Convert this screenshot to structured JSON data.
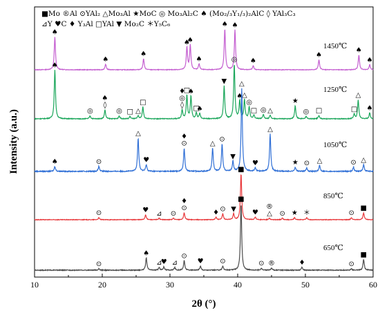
{
  "chart_data": {
    "type": "line",
    "xlabel": "2θ (°)",
    "ylabel": "Intensity (a.u.)",
    "xlim": [
      10,
      60
    ],
    "xticks": [
      10,
      20,
      30,
      40,
      50,
      60
    ],
    "legend_lines": [
      "■Mo ®Al ⊙YAl₂ △Mo₃Al ★MoC ◎ Mo₃Al₂C ♠ (Mo₂/₃Y₁/₃)₂AlC ◊ YAl₃C₃",
      "⊿Y ♥C ♦ Y₃Al □YAl ▼ Mo₂C ＊Y₅C₆"
    ],
    "series": [
      {
        "name": "1450℃",
        "color": "#c45ed0",
        "peaks": [
          {
            "x": 13.0,
            "h": 0.66,
            "m": "♠"
          },
          {
            "x": 20.5,
            "h": 0.11,
            "m": "♠"
          },
          {
            "x": 26.1,
            "h": 0.22,
            "m": "♠"
          },
          {
            "x": 32.5,
            "h": 0.45,
            "m": "♠"
          },
          {
            "x": 33.0,
            "h": 0.5,
            "m": "♠"
          },
          {
            "x": 34.3,
            "h": 0.12,
            "m": "♠"
          },
          {
            "x": 38.1,
            "h": 0.82,
            "m": "♠"
          },
          {
            "x": 39.6,
            "h": 0.8,
            "m": "♠"
          },
          {
            "x": 42.3,
            "h": 0.08,
            "m": "♠"
          },
          {
            "x": 52.0,
            "h": 0.2,
            "m": "♠"
          },
          {
            "x": 57.9,
            "h": 0.3,
            "m": "♠"
          },
          {
            "x": 59.5,
            "h": 0.1,
            "m": "♠"
          }
        ]
      },
      {
        "name": "1250℃",
        "color": "#1aa65a",
        "peaks": [
          {
            "x": 13.0,
            "h": 0.82,
            "m": "♠"
          },
          {
            "x": 18.2,
            "h": 0.05,
            "m": "◎"
          },
          {
            "x": 20.4,
            "h": 0.15,
            "m": "♠◊"
          },
          {
            "x": 22.5,
            "h": 0.05,
            "m": "◎"
          },
          {
            "x": 24.1,
            "h": 0.04,
            "m": "□"
          },
          {
            "x": 25.3,
            "h": 0.05,
            "m": "△"
          },
          {
            "x": 26.0,
            "h": 0.2,
            "m": "□"
          },
          {
            "x": 31.8,
            "h": 0.15,
            "m": "♦◎◊"
          },
          {
            "x": 32.5,
            "h": 0.4,
            "m": "□"
          },
          {
            "x": 33.1,
            "h": 0.38,
            "m": "♠"
          },
          {
            "x": 33.9,
            "h": 0.1,
            "m": "□"
          },
          {
            "x": 34.4,
            "h": 0.09,
            "m": "♠"
          },
          {
            "x": 38.0,
            "h": 0.55,
            "m": "▼"
          },
          {
            "x": 39.5,
            "h": 0.92,
            "m": "◎"
          },
          {
            "x": 40.3,
            "h": 0.3,
            "m": "♠"
          },
          {
            "x": 41.0,
            "h": 0.32,
            "m": "△"
          },
          {
            "x": 41.7,
            "h": 0.2,
            "m": "◎"
          },
          {
            "x": 42.4,
            "h": 0.06,
            "m": "□"
          },
          {
            "x": 43.8,
            "h": 0.07,
            "m": "◎"
          },
          {
            "x": 44.8,
            "h": 0.06,
            "m": "△"
          },
          {
            "x": 48.5,
            "h": 0.22,
            "m": "★"
          },
          {
            "x": 50.1,
            "h": 0.04,
            "m": "◎"
          },
          {
            "x": 52.0,
            "h": 0.06,
            "m": "□"
          },
          {
            "x": 57.2,
            "h": 0.08,
            "m": "□"
          },
          {
            "x": 57.8,
            "h": 0.32,
            "m": "△"
          },
          {
            "x": 59.5,
            "h": 0.1,
            "m": "♠"
          }
        ]
      },
      {
        "name": "1050℃",
        "color": "#2f6fd6",
        "peaks": [
          {
            "x": 13.0,
            "h": 0.06,
            "m": "♠"
          },
          {
            "x": 19.5,
            "h": 0.06,
            "m": "⊙"
          },
          {
            "x": 25.3,
            "h": 0.4,
            "m": "△"
          },
          {
            "x": 26.5,
            "h": 0.08,
            "m": "♥"
          },
          {
            "x": 32.1,
            "h": 0.28,
            "m": "♦⊙"
          },
          {
            "x": 36.3,
            "h": 0.28,
            "m": "△"
          },
          {
            "x": 37.7,
            "h": 0.33,
            "m": "⊙"
          },
          {
            "x": 39.3,
            "h": 0.12,
            "m": "▼"
          },
          {
            "x": 40.6,
            "h": 1.0,
            "m": "△"
          },
          {
            "x": 42.6,
            "h": 0.04,
            "m": "♥"
          },
          {
            "x": 44.8,
            "h": 0.45,
            "m": "△"
          },
          {
            "x": 48.5,
            "h": 0.05,
            "m": "★"
          },
          {
            "x": 50.2,
            "h": 0.04,
            "m": "⊙"
          },
          {
            "x": 52.1,
            "h": 0.07,
            "m": "△"
          },
          {
            "x": 57.1,
            "h": 0.05,
            "m": "⊙"
          },
          {
            "x": 58.6,
            "h": 0.08,
            "m": "△"
          }
        ]
      },
      {
        "name": "850℃",
        "color": "#e8373a",
        "peaks": [
          {
            "x": 19.5,
            "h": 0.04,
            "m": "⊙"
          },
          {
            "x": 26.4,
            "h": 0.1,
            "m": "♥"
          },
          {
            "x": 28.4,
            "h": 0.03,
            "m": "⊿"
          },
          {
            "x": 30.5,
            "h": 0.03,
            "m": "⊙"
          },
          {
            "x": 32.1,
            "h": 0.14,
            "m": "♦⊙"
          },
          {
            "x": 36.8,
            "h": 0.05,
            "m": "♦"
          },
          {
            "x": 37.8,
            "h": 0.12,
            "m": "⊙"
          },
          {
            "x": 39.4,
            "h": 0.12,
            "m": "▼"
          },
          {
            "x": 40.5,
            "h": 0.92,
            "m": "■"
          },
          {
            "x": 42.6,
            "h": 0.05,
            "m": "♥"
          },
          {
            "x": 44.7,
            "h": 0.03,
            "m": "®△"
          },
          {
            "x": 46.6,
            "h": 0.03,
            "m": "⊙"
          },
          {
            "x": 48.4,
            "h": 0.04,
            "m": "★"
          },
          {
            "x": 50.2,
            "h": 0.04,
            "m": "＊"
          },
          {
            "x": 56.8,
            "h": 0.04,
            "m": "⊙"
          },
          {
            "x": 58.6,
            "h": 0.14,
            "m": "■"
          }
        ]
      },
      {
        "name": "650℃",
        "color": "#4a4a4a",
        "peaks": [
          {
            "x": 19.5,
            "h": 0.02,
            "m": "⊙"
          },
          {
            "x": 26.5,
            "h": 0.18,
            "m": "♠"
          },
          {
            "x": 28.4,
            "h": 0.04,
            "m": "⊿"
          },
          {
            "x": 29.1,
            "h": 0.05,
            "m": "♥"
          },
          {
            "x": 30.7,
            "h": 0.04,
            "m": "⊿"
          },
          {
            "x": 32.1,
            "h": 0.14,
            "m": "⊙"
          },
          {
            "x": 34.5,
            "h": 0.06,
            "m": "♥"
          },
          {
            "x": 37.8,
            "h": 0.06,
            "m": "⊙"
          },
          {
            "x": 40.5,
            "h": 0.98,
            "m": "■"
          },
          {
            "x": 43.5,
            "h": 0.03,
            "m": "⊙"
          },
          {
            "x": 45.0,
            "h": 0.03,
            "m": "®"
          },
          {
            "x": 49.5,
            "h": 0.04,
            "m": "♦"
          },
          {
            "x": 56.8,
            "h": 0.02,
            "m": "⊙"
          },
          {
            "x": 58.6,
            "h": 0.16,
            "m": "■"
          }
        ]
      }
    ]
  }
}
